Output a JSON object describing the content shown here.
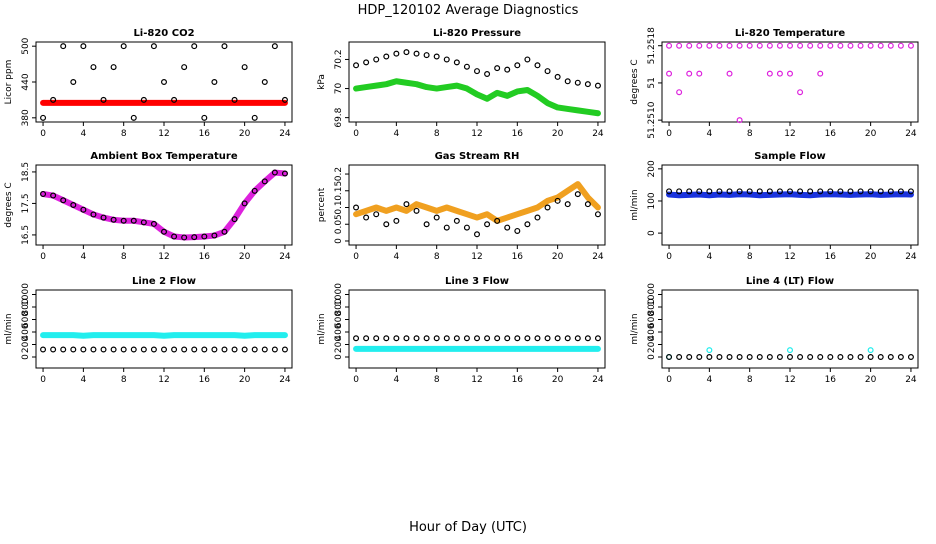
{
  "title": "HDP_120102  Average Diagnostics",
  "x_label": "Hour of Day (UTC)",
  "chart_data": [
    {
      "type": "scatter",
      "title": "Li-820 CO2",
      "y_label": "Licor ppm",
      "x": [
        0,
        1,
        2,
        3,
        4,
        5,
        6,
        7,
        8,
        9,
        10,
        11,
        12,
        13,
        14,
        15,
        16,
        17,
        18,
        19,
        20,
        21,
        22,
        23,
        24
      ],
      "xlim": [
        -0.7,
        24.7
      ],
      "xticks": [
        0,
        4,
        8,
        12,
        16,
        20,
        24
      ],
      "ylim": [
        373,
        507
      ],
      "yticks": [
        380,
        440,
        500
      ],
      "series": [
        {
          "style": "band",
          "color": "#ff0000",
          "values": [
            405,
            405,
            405,
            405,
            405,
            405,
            405,
            405,
            405,
            405,
            405,
            405,
            405,
            405,
            405,
            405,
            405,
            405,
            405,
            405,
            405,
            405,
            405,
            405,
            405
          ]
        },
        {
          "style": "points",
          "color": "#000000",
          "values": [
            380,
            410,
            500,
            440,
            500,
            465,
            410,
            465,
            500,
            380,
            410,
            500,
            440,
            410,
            465,
            500,
            380,
            440,
            500,
            410,
            465,
            380,
            440,
            500,
            410
          ]
        }
      ]
    },
    {
      "type": "scatter",
      "title": "Li-820 Pressure",
      "y_label": "kPa",
      "x": [
        0,
        1,
        2,
        3,
        4,
        5,
        6,
        7,
        8,
        9,
        10,
        11,
        12,
        13,
        14,
        15,
        16,
        17,
        18,
        19,
        20,
        21,
        22,
        23,
        24
      ],
      "xlim": [
        -0.7,
        24.7
      ],
      "xticks": [
        0,
        4,
        8,
        12,
        16,
        20,
        24
      ],
      "ylim": [
        69.77,
        70.32
      ],
      "yticks": [
        69.8,
        70.0,
        70.2
      ],
      "series": [
        {
          "style": "band",
          "color": "#22cc22",
          "values": [
            70.0,
            70.01,
            70.02,
            70.03,
            70.05,
            70.04,
            70.03,
            70.01,
            70.0,
            70.01,
            70.02,
            70.0,
            69.96,
            69.93,
            69.97,
            69.95,
            69.98,
            69.99,
            69.95,
            69.9,
            69.87,
            69.86,
            69.85,
            69.84,
            69.83
          ]
        },
        {
          "style": "points",
          "color": "#000000",
          "values": [
            70.16,
            70.18,
            70.2,
            70.22,
            70.24,
            70.25,
            70.24,
            70.23,
            70.22,
            70.2,
            70.18,
            70.15,
            70.12,
            70.1,
            70.14,
            70.13,
            70.16,
            70.2,
            70.16,
            70.12,
            70.08,
            70.05,
            70.04,
            70.03,
            70.02
          ]
        }
      ]
    },
    {
      "type": "scatter",
      "title": "Li-820 Temperature",
      "y_label": "degrees C",
      "x": [
        0,
        1,
        2,
        3,
        4,
        5,
        6,
        7,
        8,
        9,
        10,
        11,
        12,
        13,
        14,
        15,
        16,
        17,
        18,
        19,
        20,
        21,
        22,
        23,
        24
      ],
      "xlim": [
        -0.7,
        24.7
      ],
      "xticks": [
        0,
        4,
        8,
        12,
        16,
        20,
        24
      ],
      "ylim": [
        51.25098,
        51.25184
      ],
      "yticks": [
        {
          "value": 51.251,
          "label": "51.2510"
        },
        {
          "value": 51.2514,
          "label": "51"
        },
        {
          "value": 51.2518,
          "label": "51.2518"
        }
      ],
      "series": [
        {
          "style": "points",
          "color": "#dd22dd",
          "values": [
            51.2518,
            51.2518,
            51.2518,
            51.2518,
            51.2518,
            51.2518,
            51.2518,
            51.2518,
            51.2518,
            51.2518,
            51.2518,
            51.2518,
            51.2518,
            51.2518,
            51.2518,
            51.2518,
            51.2518,
            51.2518,
            51.2518,
            51.2518,
            51.2518,
            51.2518,
            51.2518,
            51.2518,
            51.2518
          ]
        },
        {
          "style": "points",
          "color": "#dd22dd",
          "values": [
            51.2515,
            51.2513,
            51.2515,
            51.2515,
            null,
            null,
            51.2515,
            51.251,
            null,
            null,
            51.2515,
            51.2515,
            51.2515,
            51.2513,
            null,
            51.2515,
            null,
            null,
            null,
            null,
            null,
            null,
            null,
            null,
            null
          ]
        }
      ]
    },
    {
      "type": "scatter",
      "title": "Ambient Box Temperature",
      "y_label": "degrees C",
      "x": [
        0,
        1,
        2,
        3,
        4,
        5,
        6,
        7,
        8,
        9,
        10,
        11,
        12,
        13,
        14,
        15,
        16,
        17,
        18,
        19,
        20,
        21,
        22,
        23,
        24
      ],
      "xlim": [
        -0.7,
        24.7
      ],
      "xticks": [
        0,
        4,
        8,
        12,
        16,
        20,
        24
      ],
      "ylim": [
        16.18,
        18.72
      ],
      "yticks": [
        16.5,
        17.5,
        18.5
      ],
      "series": [
        {
          "style": "band",
          "color": "#dd22dd",
          "values": [
            17.8,
            17.75,
            17.6,
            17.45,
            17.3,
            17.15,
            17.05,
            16.98,
            16.95,
            16.95,
            16.9,
            16.85,
            16.6,
            16.45,
            16.42,
            16.43,
            16.45,
            16.48,
            16.6,
            17.0,
            17.5,
            17.9,
            18.2,
            18.48,
            18.45
          ]
        },
        {
          "style": "points",
          "color": "#000000",
          "values": [
            17.8,
            17.75,
            17.6,
            17.45,
            17.3,
            17.15,
            17.05,
            16.98,
            16.95,
            16.95,
            16.9,
            16.85,
            16.6,
            16.45,
            16.42,
            16.43,
            16.45,
            16.48,
            16.6,
            17.0,
            17.5,
            17.9,
            18.2,
            18.48,
            18.45
          ]
        }
      ]
    },
    {
      "type": "scatter",
      "title": "Gas Stream RH",
      "y_label": "percent",
      "x": [
        0,
        1,
        2,
        3,
        4,
        5,
        6,
        7,
        8,
        9,
        10,
        11,
        12,
        13,
        14,
        15,
        16,
        17,
        18,
        19,
        20,
        21,
        22,
        23,
        24
      ],
      "xlim": [
        -0.7,
        24.7
      ],
      "xticks": [
        0,
        4,
        8,
        12,
        16,
        20,
        24
      ],
      "ylim": [
        -0.012,
        0.227
      ],
      "yticks": [
        0.0,
        0.05,
        0.1,
        0.15,
        0.2
      ],
      "series": [
        {
          "style": "band",
          "color": "#f0a020",
          "values": [
            0.08,
            0.09,
            0.1,
            0.09,
            0.1,
            0.09,
            0.11,
            0.1,
            0.09,
            0.1,
            0.09,
            0.08,
            0.07,
            0.08,
            0.06,
            0.07,
            0.08,
            0.09,
            0.1,
            0.12,
            0.13,
            0.15,
            0.17,
            0.13,
            0.1
          ]
        },
        {
          "style": "points",
          "color": "#000000",
          "values": [
            0.1,
            0.07,
            0.08,
            0.05,
            0.06,
            0.11,
            0.09,
            0.05,
            0.07,
            0.04,
            0.06,
            0.04,
            0.02,
            0.05,
            0.06,
            0.04,
            0.03,
            0.05,
            0.07,
            0.1,
            0.12,
            0.11,
            0.14,
            0.11,
            0.08
          ]
        }
      ]
    },
    {
      "type": "scatter",
      "title": "Sample Flow",
      "y_label": "ml/min",
      "x": [
        0,
        1,
        2,
        3,
        4,
        5,
        6,
        7,
        8,
        9,
        10,
        11,
        12,
        13,
        14,
        15,
        16,
        17,
        18,
        19,
        20,
        21,
        22,
        23,
        24
      ],
      "xlim": [
        -0.7,
        24.7
      ],
      "xticks": [
        0,
        4,
        8,
        12,
        16,
        20,
        24
      ],
      "ylim": [
        -37,
        212
      ],
      "yticks": [
        0,
        100,
        200
      ],
      "series": [
        {
          "style": "band",
          "color": "#1a33dd",
          "values": [
            120,
            118,
            119,
            120,
            118,
            120,
            119,
            121,
            120,
            118,
            119,
            120,
            121,
            119,
            118,
            120,
            121,
            120,
            119,
            120,
            121,
            119,
            120,
            121,
            120
          ]
        },
        {
          "style": "points",
          "color": "#000000",
          "values": [
            130,
            130,
            130,
            130,
            130,
            130,
            130,
            130,
            130,
            130,
            130,
            130,
            130,
            130,
            130,
            130,
            130,
            130,
            130,
            130,
            130,
            130,
            130,
            130,
            130
          ]
        }
      ]
    },
    {
      "type": "scatter",
      "title": "Line 2 Flow",
      "y_label": "ml/min",
      "x": [
        0,
        1,
        2,
        3,
        4,
        5,
        6,
        7,
        8,
        9,
        10,
        11,
        12,
        13,
        14,
        15,
        16,
        17,
        18,
        19,
        20,
        21,
        22,
        23,
        24
      ],
      "xlim": [
        -0.7,
        24.7
      ],
      "xticks": [
        0,
        4,
        8,
        12,
        16,
        20,
        24
      ],
      "ylim": [
        -176,
        1072
      ],
      "yticks": [
        0,
        200,
        400,
        600,
        800,
        1000
      ],
      "series": [
        {
          "style": "band",
          "color": "#22eeee",
          "values": [
            350,
            350,
            350,
            350,
            340,
            350,
            350,
            350,
            350,
            350,
            350,
            350,
            340,
            350,
            350,
            350,
            350,
            350,
            350,
            350,
            340,
            350,
            350,
            350,
            350
          ]
        },
        {
          "style": "points",
          "color": "#000000",
          "values": [
            120,
            120,
            120,
            120,
            120,
            120,
            120,
            120,
            120,
            120,
            120,
            120,
            120,
            120,
            120,
            120,
            120,
            120,
            120,
            120,
            120,
            120,
            120,
            120,
            120
          ]
        }
      ]
    },
    {
      "type": "scatter",
      "title": "Line 3 Flow",
      "y_label": "ml/min",
      "x": [
        0,
        1,
        2,
        3,
        4,
        5,
        6,
        7,
        8,
        9,
        10,
        11,
        12,
        13,
        14,
        15,
        16,
        17,
        18,
        19,
        20,
        21,
        22,
        23,
        24
      ],
      "xlim": [
        -0.7,
        24.7
      ],
      "xticks": [
        0,
        4,
        8,
        12,
        16,
        20,
        24
      ],
      "ylim": [
        -176,
        1072
      ],
      "yticks": [
        0,
        200,
        400,
        600,
        800,
        1000
      ],
      "series": [
        {
          "style": "band",
          "color": "#22eeee",
          "values": [
            130,
            130,
            130,
            130,
            130,
            130,
            130,
            130,
            130,
            130,
            130,
            130,
            130,
            130,
            130,
            130,
            130,
            130,
            130,
            130,
            130,
            130,
            130,
            130,
            130
          ]
        },
        {
          "style": "points",
          "color": "#000000",
          "values": [
            300,
            300,
            300,
            300,
            300,
            300,
            300,
            300,
            300,
            300,
            300,
            300,
            300,
            300,
            300,
            300,
            300,
            300,
            300,
            300,
            300,
            300,
            300,
            300,
            300
          ]
        }
      ]
    },
    {
      "type": "scatter",
      "title": "Line 4 (LT) Flow",
      "y_label": "ml/min",
      "x": [
        0,
        1,
        2,
        3,
        4,
        5,
        6,
        7,
        8,
        9,
        10,
        11,
        12,
        13,
        14,
        15,
        16,
        17,
        18,
        19,
        20,
        21,
        22,
        23,
        24
      ],
      "xlim": [
        -0.7,
        24.7
      ],
      "xticks": [
        0,
        4,
        8,
        12,
        16,
        20,
        24
      ],
      "ylim": [
        -176,
        1072
      ],
      "yticks": [
        0,
        200,
        400,
        600,
        800,
        1000
      ],
      "series": [
        {
          "style": "points",
          "color": "#22eeee",
          "values": [
            0,
            null,
            null,
            null,
            110,
            null,
            null,
            null,
            null,
            null,
            null,
            null,
            110,
            null,
            null,
            null,
            null,
            null,
            null,
            null,
            110,
            null,
            null,
            null,
            null
          ]
        },
        {
          "style": "points",
          "color": "#000000",
          "values": [
            0,
            0,
            0,
            0,
            0,
            0,
            0,
            0,
            0,
            0,
            0,
            0,
            0,
            0,
            0,
            0,
            0,
            0,
            0,
            0,
            0,
            0,
            0,
            0,
            0
          ]
        }
      ]
    }
  ]
}
